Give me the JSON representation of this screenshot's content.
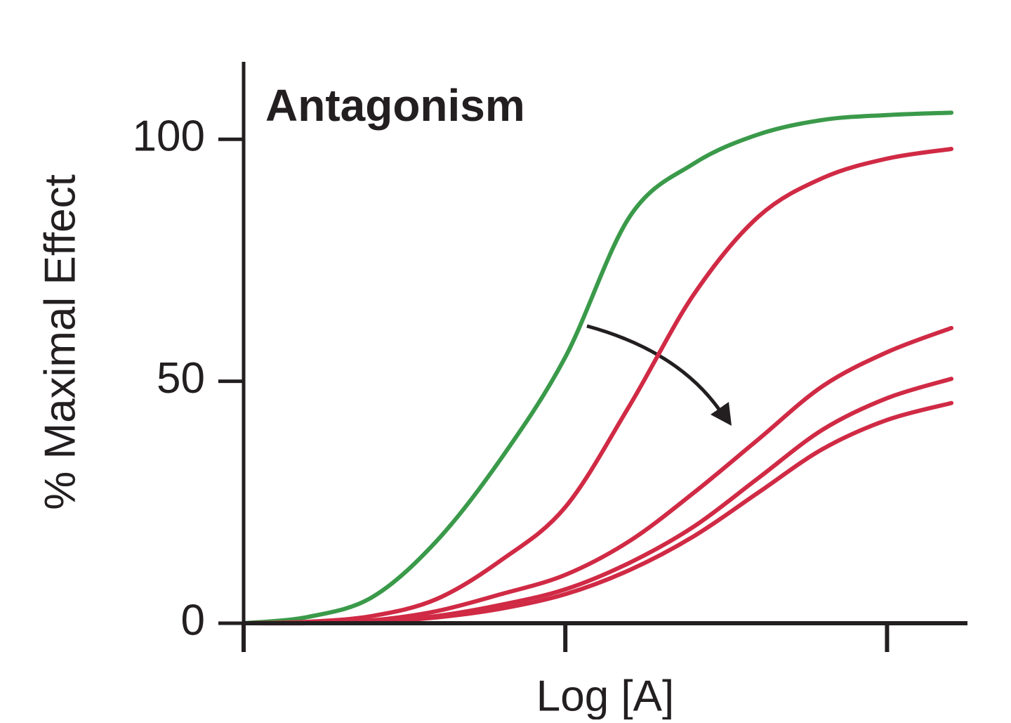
{
  "chart_data": {
    "type": "line",
    "title": "Antagonism",
    "xlabel": "Log [A]",
    "ylabel": "% Maximal Effect",
    "x": [
      0,
      0.2,
      0.4,
      0.6,
      0.8,
      1.0,
      1.2,
      1.4,
      1.6,
      1.8,
      2.0,
      2.2
    ],
    "series": [
      {
        "color": "#3a9a4a",
        "values": [
          0,
          1.3,
          5.4,
          17,
          34,
          55,
          84,
          95,
          101,
          104,
          105,
          105.5
        ]
      },
      {
        "color": "#d02a45",
        "values": [
          0,
          0.3,
          1.5,
          5,
          13,
          24,
          45,
          68,
          84,
          92,
          96,
          98
        ]
      },
      {
        "color": "#d02a45",
        "values": [
          0,
          0.1,
          0.6,
          2.5,
          6,
          10,
          17,
          27,
          38,
          49,
          56,
          61
        ]
      },
      {
        "color": "#d02a45",
        "values": [
          0,
          0.05,
          0.4,
          1.5,
          3.8,
          7,
          12.5,
          20,
          30,
          40,
          46.5,
          50.5
        ]
      },
      {
        "color": "#d02a45",
        "values": [
          0,
          0,
          0.3,
          1.2,
          3,
          6,
          11,
          18,
          27,
          36,
          42,
          45.5
        ]
      }
    ],
    "xlim": [
      0,
      2.25
    ],
    "xticks": [
      0,
      1,
      2
    ],
    "ylim": [
      0,
      116
    ],
    "yticks": [
      0,
      50,
      100
    ]
  }
}
